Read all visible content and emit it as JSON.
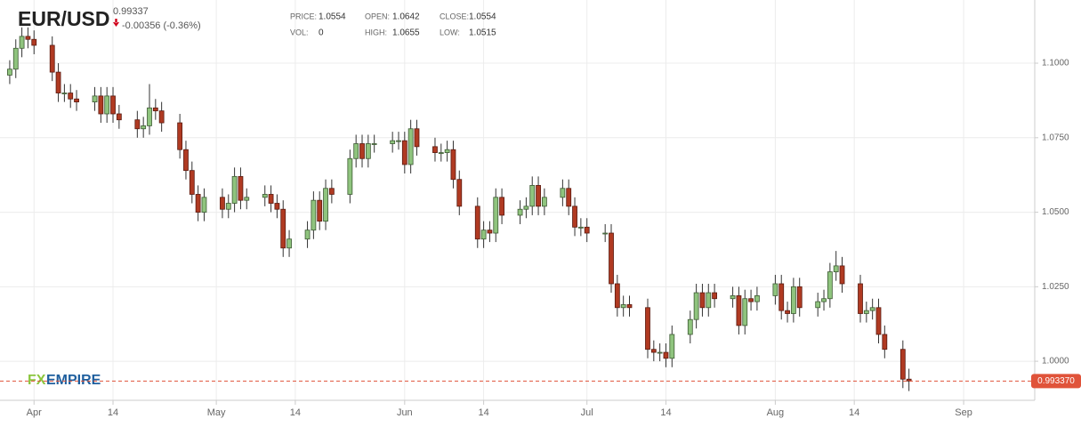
{
  "header": {
    "symbol": "EUR/USD",
    "price": 0.99337,
    "change": "-0.00356 (-0.36%)",
    "stats": [
      {
        "label": "PRICE:",
        "value": 1.0554
      },
      {
        "label": "OPEN:",
        "value": 1.0642
      },
      {
        "label": "CLOSE:",
        "value": 1.0554
      },
      {
        "label": "VOL:",
        "value": 0
      },
      {
        "label": "HIGH:",
        "value": 1.0655
      },
      {
        "label": "LOW:",
        "value": 1.0515
      }
    ],
    "watermark": [
      "FX",
      "EMPIRE"
    ]
  },
  "chart_data": {
    "type": "candlestick",
    "up_color": "#8fc47e",
    "down_color": "#b03a22",
    "grid": true,
    "x": [
      87,
      88,
      89,
      90,
      91,
      94,
      95,
      96,
      97,
      98,
      101,
      102,
      103,
      104,
      105,
      108,
      109,
      110,
      111,
      112,
      115,
      116,
      117,
      118,
      119,
      122,
      123,
      124,
      125,
      126,
      129,
      130,
      131,
      132,
      133,
      136,
      137,
      138,
      139,
      140,
      143,
      144,
      145,
      146,
      147,
      150,
      151,
      152,
      153,
      154,
      157,
      158,
      159,
      160,
      161,
      164,
      165,
      166,
      167,
      168,
      171,
      172,
      173,
      174,
      175,
      178,
      179,
      180,
      181,
      182,
      185,
      186,
      187,
      188,
      189,
      192,
      193,
      194,
      195,
      196,
      199,
      200,
      201,
      202,
      203,
      206,
      207,
      208,
      209,
      210,
      213,
      214,
      215,
      216,
      217,
      220,
      221,
      222,
      223,
      224,
      227,
      228,
      229,
      230,
      231,
      234,
      235
    ],
    "open": [
      1.096,
      1.098,
      1.105,
      1.109,
      1.108,
      1.106,
      1.097,
      1.09,
      1.09,
      1.088,
      1.087,
      1.089,
      1.083,
      1.089,
      1.083,
      1.081,
      1.078,
      1.079,
      1.085,
      1.084,
      1.08,
      1.071,
      1.064,
      1.056,
      1.05,
      1.055,
      1.051,
      1.053,
      1.062,
      1.054,
      1.055,
      1.056,
      1.053,
      1.051,
      1.038,
      1.041,
      1.044,
      1.054,
      1.047,
      1.058,
      1.056,
      1.068,
      1.073,
      1.068,
      1.073,
      1.073,
      1.074,
      1.074,
      1.066,
      1.078,
      1.072,
      1.07,
      1.07,
      1.071,
      1.061,
      1.052,
      1.041,
      1.044,
      1.043,
      1.055,
      1.049,
      1.051,
      1.052,
      1.059,
      1.052,
      1.055,
      1.058,
      1.052,
      1.045,
      1.045,
      1.043,
      1.043,
      1.026,
      1.018,
      1.019,
      1.018,
      1.004,
      1.003,
      1.003,
      1.001,
      1.009,
      1.014,
      1.023,
      1.018,
      1.023,
      1.021,
      1.022,
      1.012,
      1.021,
      1.02,
      1.022,
      1.026,
      1.017,
      1.016,
      1.025,
      1.018,
      1.02,
      1.021,
      1.03,
      1.032,
      1.026,
      1.016,
      1.017,
      1.018,
      1.009,
      1.004,
      0.994
    ],
    "high": [
      1.101,
      1.108,
      1.112,
      1.112,
      1.111,
      1.109,
      1.1,
      1.093,
      1.093,
      1.091,
      1.092,
      1.092,
      1.092,
      1.092,
      1.086,
      1.084,
      1.082,
      1.093,
      1.088,
      1.087,
      1.083,
      1.074,
      1.067,
      1.059,
      1.058,
      1.058,
      1.056,
      1.065,
      1.065,
      1.058,
      1.059,
      1.059,
      1.056,
      1.054,
      1.044,
      1.047,
      1.057,
      1.057,
      1.061,
      1.061,
      1.071,
      1.076,
      1.076,
      1.076,
      1.076,
      1.077,
      1.077,
      1.077,
      1.081,
      1.081,
      1.075,
      1.073,
      1.074,
      1.074,
      1.064,
      1.055,
      1.047,
      1.047,
      1.058,
      1.058,
      1.054,
      1.055,
      1.062,
      1.062,
      1.058,
      1.061,
      1.061,
      1.055,
      1.048,
      1.048,
      1.046,
      1.046,
      1.029,
      1.022,
      1.022,
      1.021,
      1.007,
      1.006,
      1.006,
      1.012,
      1.017,
      1.026,
      1.026,
      1.026,
      1.026,
      1.025,
      1.025,
      1.024,
      1.024,
      1.025,
      1.029,
      1.029,
      1.02,
      1.028,
      1.028,
      1.023,
      1.024,
      1.033,
      1.037,
      1.035,
      1.029,
      1.02,
      1.021,
      1.021,
      1.012,
      1.007,
      0.9975
    ],
    "low": [
      1.093,
      1.095,
      1.102,
      1.105,
      1.103,
      1.094,
      1.087,
      1.087,
      1.085,
      1.084,
      1.084,
      1.08,
      1.08,
      1.08,
      1.078,
      1.075,
      1.075,
      1.076,
      1.081,
      1.077,
      1.068,
      1.061,
      1.053,
      1.047,
      1.047,
      1.048,
      1.048,
      1.05,
      1.051,
      1.051,
      1.052,
      1.05,
      1.048,
      1.035,
      1.035,
      1.038,
      1.041,
      1.044,
      1.044,
      1.053,
      1.053,
      1.065,
      1.065,
      1.065,
      1.07,
      1.07,
      1.071,
      1.063,
      1.063,
      1.069,
      1.067,
      1.067,
      1.067,
      1.058,
      1.049,
      1.038,
      1.038,
      1.04,
      1.04,
      1.046,
      1.046,
      1.048,
      1.049,
      1.049,
      1.049,
      1.052,
      1.049,
      1.042,
      1.042,
      1.04,
      1.04,
      1.023,
      1.015,
      1.015,
      1.015,
      1.001,
      1.0,
      1.0,
      0.998,
      0.998,
      1.006,
      1.011,
      1.015,
      1.015,
      1.018,
      1.018,
      1.009,
      1.009,
      1.017,
      1.017,
      1.019,
      1.014,
      1.013,
      1.013,
      1.015,
      1.015,
      1.017,
      1.018,
      1.027,
      1.023,
      1.013,
      1.013,
      1.014,
      1.006,
      1.001,
      0.991,
      0.99
    ],
    "close": [
      1.098,
      1.105,
      1.109,
      1.108,
      1.106,
      1.097,
      1.09,
      1.09,
      1.088,
      1.087,
      1.089,
      1.083,
      1.089,
      1.083,
      1.081,
      1.078,
      1.079,
      1.085,
      1.084,
      1.08,
      1.071,
      1.064,
      1.056,
      1.05,
      1.055,
      1.051,
      1.053,
      1.062,
      1.054,
      1.055,
      1.056,
      1.053,
      1.051,
      1.038,
      1.041,
      1.044,
      1.054,
      1.047,
      1.058,
      1.056,
      1.068,
      1.073,
      1.068,
      1.073,
      1.073,
      1.074,
      1.074,
      1.066,
      1.078,
      1.072,
      1.07,
      1.07,
      1.071,
      1.061,
      1.052,
      1.041,
      1.044,
      1.043,
      1.055,
      1.049,
      1.051,
      1.052,
      1.059,
      1.052,
      1.055,
      1.058,
      1.052,
      1.045,
      1.045,
      1.043,
      1.043,
      1.026,
      1.018,
      1.019,
      1.018,
      1.004,
      1.003,
      1.003,
      1.001,
      1.009,
      1.014,
      1.023,
      1.018,
      1.023,
      1.021,
      1.022,
      1.012,
      1.021,
      1.02,
      1.022,
      1.026,
      1.017,
      1.016,
      1.025,
      1.018,
      1.02,
      1.021,
      1.03,
      1.032,
      1.026,
      1.016,
      1.017,
      1.018,
      1.009,
      1.004,
      0.994,
      0.99337
    ],
    "xlim": [
      85.4,
      255.7
    ],
    "xticks": [
      {
        "value": 91,
        "label": "Apr"
      },
      {
        "value": 104,
        "label": "14"
      },
      {
        "value": 121,
        "label": "May"
      },
      {
        "value": 134,
        "label": "14"
      },
      {
        "value": 152,
        "label": "Jun"
      },
      {
        "value": 165,
        "label": "14"
      },
      {
        "value": 182,
        "label": "Jul"
      },
      {
        "value": 195,
        "label": "14"
      },
      {
        "value": 213,
        "label": "Aug"
      },
      {
        "value": 226,
        "label": "14"
      },
      {
        "value": 244,
        "label": "Sep"
      }
    ],
    "ylim": [
      0.9869,
      1.1212
    ],
    "yticks": [
      {
        "value": 1,
        "label": "1.0000"
      },
      {
        "value": 1.025,
        "label": "1.0250"
      },
      {
        "value": 1.05,
        "label": "1.0500"
      },
      {
        "value": 1.075,
        "label": "1.0750"
      },
      {
        "value": 1.1,
        "label": "1.1000"
      }
    ],
    "last_price": {
      "value": 0.99337,
      "label": "0.993370"
    }
  }
}
